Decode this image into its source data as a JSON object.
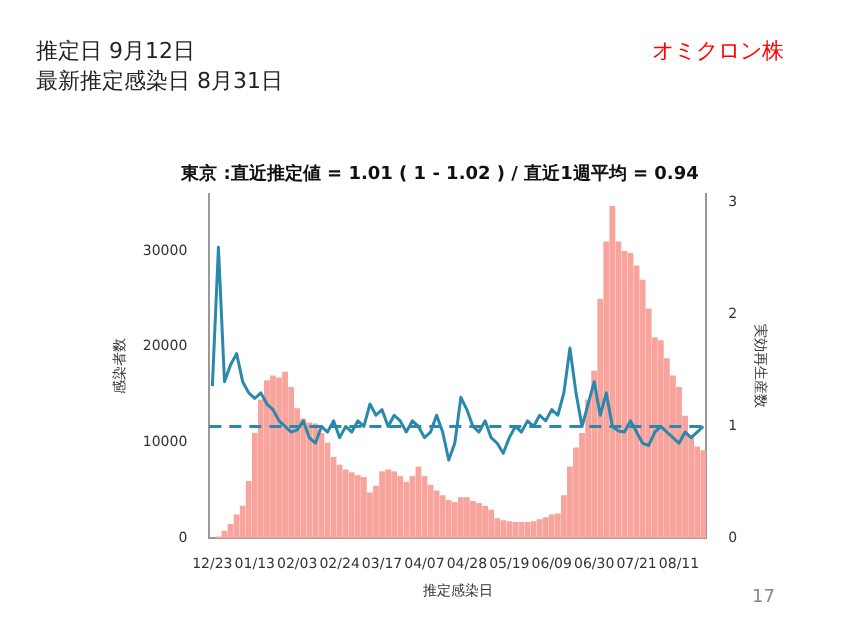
{
  "chart_data": {
    "type": "bar",
    "title": "東京 :直近推定値 = 1.01 ( 1 - 1.02 ) / 直近1週平均 = 0.94",
    "xlabel": "推定感染日",
    "ylabel": "感染者数",
    "y2label": "実効再生産数",
    "annotations": [
      "推定日  9月12日",
      "最新推定感染日  8月31日",
      "オミクロン株",
      "17"
    ],
    "categories": [
      "12/23",
      null,
      null,
      null,
      null,
      null,
      null,
      "01/13",
      null,
      null,
      null,
      null,
      null,
      null,
      "02/03",
      null,
      null,
      null,
      null,
      null,
      null,
      "02/24",
      null,
      null,
      null,
      null,
      null,
      null,
      "03/17",
      null,
      null,
      null,
      null,
      null,
      null,
      "04/07",
      null,
      null,
      null,
      null,
      null,
      null,
      "04/28",
      null,
      null,
      null,
      null,
      null,
      null,
      "05/19",
      null,
      null,
      null,
      null,
      null,
      null,
      "06/09",
      null,
      null,
      null,
      null,
      null,
      null,
      "06/30",
      null,
      null,
      null,
      null,
      null,
      null,
      "07/21",
      null,
      null,
      null,
      null,
      null,
      null,
      "08/11",
      null,
      null,
      null,
      null
    ],
    "series": [
      {
        "color": "#f8a39b",
        "values": [
          0,
          200,
          800,
          1500,
          2500,
          3400,
          6000,
          11000,
          14500,
          16500,
          17000,
          16800,
          17400,
          15800,
          13600,
          12500,
          12100,
          12000,
          11000,
          10000,
          8500,
          7700,
          7200,
          6900,
          6600,
          6400,
          4800,
          5500,
          7000,
          7200,
          7000,
          6500,
          5900,
          6500,
          7500,
          6500,
          5600,
          5000,
          4500,
          4000,
          3800,
          4300,
          4300,
          3900,
          3700,
          3400,
          3000,
          2100,
          1900,
          1800,
          1700,
          1700,
          1700,
          1800,
          2000,
          2200,
          2500,
          2600,
          4500,
          7500,
          9500,
          11000,
          14500,
          17500,
          25000,
          31000,
          34700,
          31000,
          30000,
          29800,
          28500,
          27000,
          24000,
          21000,
          20700,
          18800,
          17000,
          15800,
          12800,
          10800,
          9600,
          9200
        ]
      },
      {
        "type": "line",
        "axis": "y2",
        "color": "#2a88ad",
        "values": [
          1.36,
          2.6,
          1.4,
          1.55,
          1.65,
          1.4,
          1.3,
          1.25,
          1.3,
          1.2,
          1.15,
          1.05,
          1.0,
          0.95,
          0.97,
          1.05,
          0.9,
          0.85,
          1.0,
          0.95,
          1.05,
          0.9,
          1.0,
          0.95,
          1.05,
          1.0,
          1.2,
          1.1,
          1.15,
          1.0,
          1.1,
          1.05,
          0.95,
          1.05,
          1.0,
          0.9,
          0.95,
          1.1,
          0.95,
          0.7,
          0.85,
          1.26,
          1.15,
          1.0,
          0.95,
          1.05,
          0.9,
          0.85,
          0.76,
          0.9,
          1.0,
          0.95,
          1.05,
          1.0,
          1.1,
          1.05,
          1.15,
          1.1,
          1.3,
          1.7,
          1.3,
          1.0,
          1.2,
          1.4,
          1.1,
          1.3,
          1.0,
          0.96,
          0.95,
          1.05,
          0.95,
          0.85,
          0.83,
          0.95,
          1.0,
          0.95,
          0.9,
          0.85,
          0.95,
          0.9,
          0.95,
          1.0
        ]
      }
    ],
    "ylim": [
      0,
      36000
    ],
    "yticks": [
      0,
      10000,
      20000,
      30000
    ],
    "y2lim": [
      0,
      3.08
    ],
    "y2ticks": [
      0,
      1,
      2,
      3
    ],
    "ref_lines": [
      {
        "axis": "y2",
        "value": 1,
        "color": "#2a88ad",
        "line_style": "dashed"
      }
    ],
    "grid": false,
    "legend": false,
    "marker": "none"
  }
}
